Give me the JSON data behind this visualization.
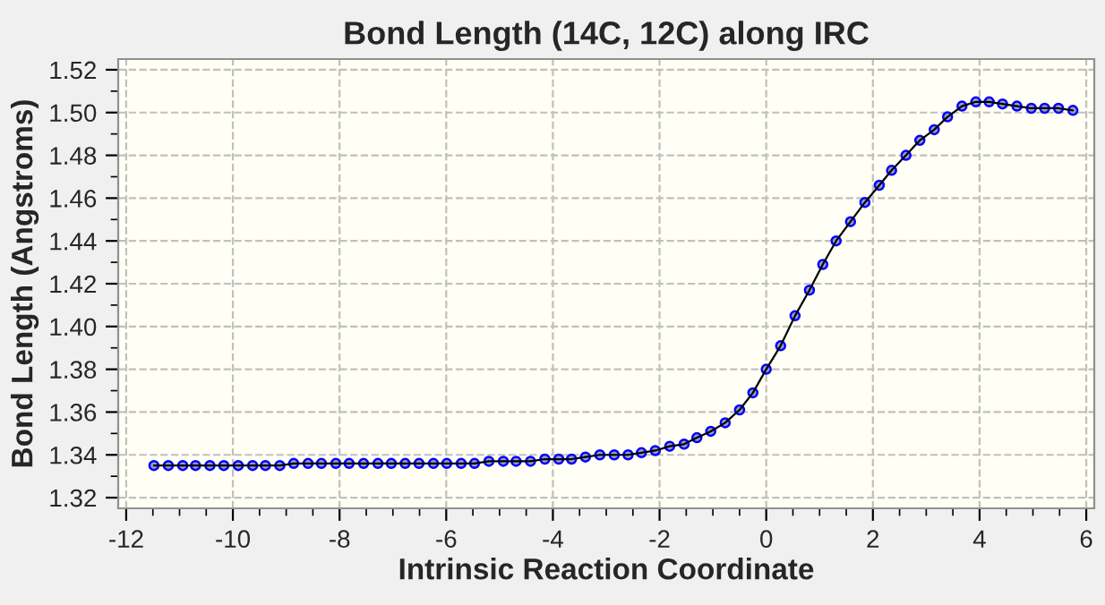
{
  "chart_data": {
    "type": "line",
    "title": "Bond Length (14C, 12C) along IRC",
    "xlabel": "Intrinsic Reaction Coordinate",
    "ylabel": "Bond Length (Angstroms)",
    "x": [
      -11.48,
      -11.21,
      -10.94,
      -10.7,
      -10.43,
      -10.17,
      -9.9,
      -9.63,
      -9.39,
      -9.12,
      -8.86,
      -8.59,
      -8.34,
      -8.07,
      -7.82,
      -7.55,
      -7.28,
      -7.03,
      -6.77,
      -6.51,
      -6.24,
      -5.99,
      -5.72,
      -5.47,
      -5.2,
      -4.93,
      -4.69,
      -4.42,
      -4.15,
      -3.89,
      -3.65,
      -3.39,
      -3.12,
      -2.85,
      -2.59,
      -2.34,
      -2.08,
      -1.81,
      -1.54,
      -1.3,
      -1.04,
      -0.77,
      -0.5,
      -0.25,
      0,
      0.27,
      0.54,
      0.81,
      1.06,
      1.31,
      1.58,
      1.85,
      2.12,
      2.35,
      2.62,
      2.88,
      3.15,
      3.4,
      3.67,
      3.93,
      4.18,
      4.43,
      4.7,
      4.97,
      5.22,
      5.48,
      5.75
    ],
    "series": [
      {
        "color": "#0000ff",
        "values": [
          1.335,
          1.335,
          1.335,
          1.335,
          1.335,
          1.335,
          1.335,
          1.335,
          1.335,
          1.335,
          1.336,
          1.336,
          1.336,
          1.336,
          1.336,
          1.336,
          1.336,
          1.336,
          1.336,
          1.336,
          1.336,
          1.336,
          1.336,
          1.336,
          1.337,
          1.337,
          1.337,
          1.337,
          1.338,
          1.338,
          1.338,
          1.339,
          1.34,
          1.34,
          1.34,
          1.341,
          1.342,
          1.344,
          1.345,
          1.348,
          1.351,
          1.355,
          1.361,
          1.369,
          1.38,
          1.391,
          1.405,
          1.417,
          1.429,
          1.44,
          1.449,
          1.458,
          1.466,
          1.473,
          1.48,
          1.487,
          1.492,
          1.498,
          1.503,
          1.505,
          1.505,
          1.504,
          1.503,
          1.502,
          1.502,
          1.502,
          1.501
        ]
      }
    ],
    "xlim": [
      -12.15,
      6.15
    ],
    "ylim": [
      1.315,
      1.525
    ],
    "xticks": [
      -12,
      -10,
      -8,
      -6,
      -4,
      -2,
      0,
      2,
      4,
      6
    ],
    "yticks": [
      {
        "value": 1.32,
        "label": "1.32"
      },
      {
        "value": 1.34,
        "label": "1.34"
      },
      {
        "value": 1.36,
        "label": "1.36"
      },
      {
        "value": 1.38,
        "label": "1.38"
      },
      {
        "value": 1.4,
        "label": "1.40"
      },
      {
        "value": 1.42,
        "label": "1.42"
      },
      {
        "value": 1.44,
        "label": "1.44"
      },
      {
        "value": 1.46,
        "label": "1.46"
      },
      {
        "value": 1.48,
        "label": "1.48"
      },
      {
        "value": 1.5,
        "label": "1.50"
      },
      {
        "value": 1.52,
        "label": "1.52"
      }
    ],
    "grid": true,
    "marker": "circle",
    "line_style": "solid"
  }
}
